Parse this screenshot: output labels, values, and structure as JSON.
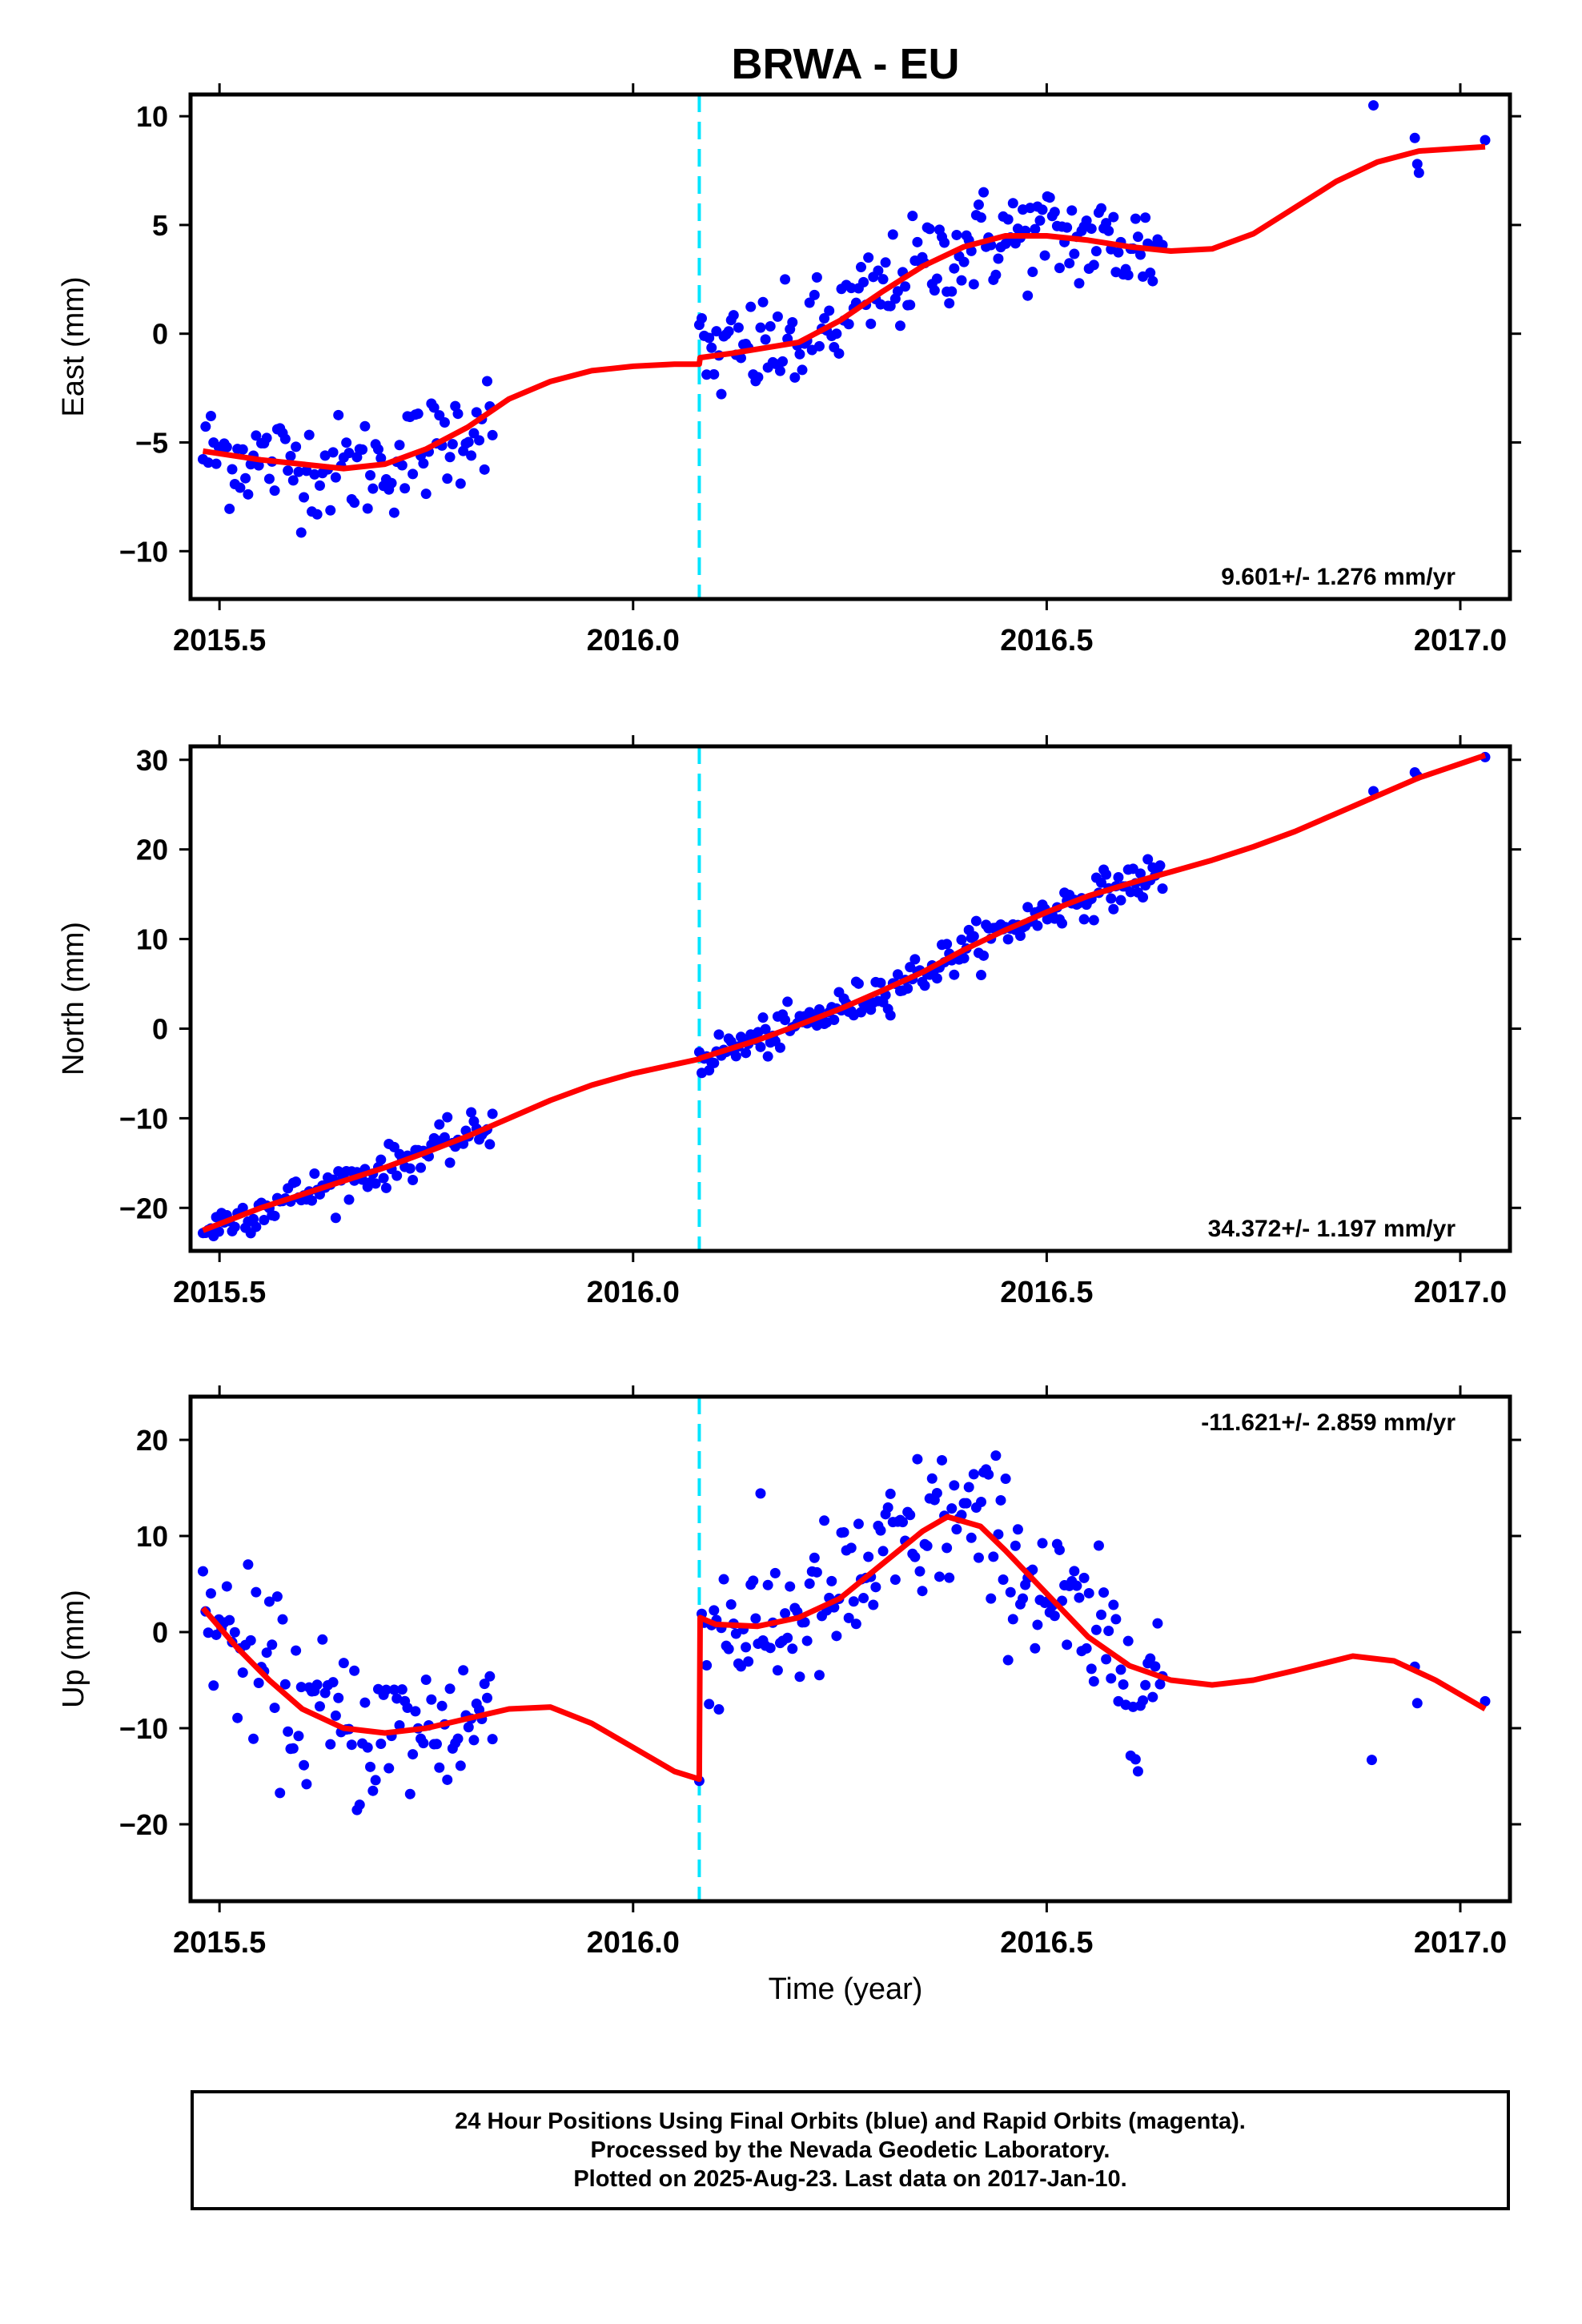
{
  "title": "BRWA - EU",
  "colors": {
    "fit": "#ff0000",
    "final_orbits": "#0000ff",
    "offset": "#00e5ff",
    "frame": "#000000"
  },
  "xaxis": {
    "label": "Time (year)",
    "range": [
      2015.465,
      2017.06
    ],
    "ticks": [
      2015.5,
      2016.0,
      2016.5,
      2017.0
    ],
    "tick_labels": [
      "2015.5",
      "2016.0",
      "2016.5",
      "2017.0"
    ]
  },
  "chart_data": [
    {
      "type": "scatter",
      "component": "east",
      "ylabel": "East (mm)",
      "ylim": [
        -12.2,
        11
      ],
      "yticks": [
        10,
        5,
        0,
        -5,
        -10
      ],
      "ytick_labels": [
        "10",
        "5",
        "0",
        "−5",
        "−10"
      ],
      "rate_label": "9.601+/- 1.276 mm/yr",
      "offset_epoch": 2016.08,
      "series": [
        {
          "name": "Final Orbits",
          "marker": "dot",
          "color": "#0000ff",
          "x": [],
          "y": []
        },
        {
          "name": "model fit",
          "marker": "line",
          "color": "#ff0000",
          "x": [
            2015.48,
            2015.55,
            2015.6,
            2015.65,
            2015.7,
            2015.75,
            2015.8,
            2015.85,
            2015.9,
            2015.95,
            2016.0,
            2016.05,
            2016.08,
            2016.081,
            2016.12,
            2016.2,
            2016.25,
            2016.3,
            2016.35,
            2016.4,
            2016.45,
            2016.5,
            2016.55,
            2016.6,
            2016.65,
            2016.7,
            2016.75,
            2016.8,
            2016.85,
            2016.9,
            2016.95,
            2017.03
          ],
          "y": [
            -5.4,
            -5.8,
            -6.0,
            -6.2,
            -6.0,
            -5.3,
            -4.3,
            -3.0,
            -2.2,
            -1.7,
            -1.5,
            -1.4,
            -1.4,
            -1.1,
            -0.9,
            -0.4,
            0.6,
            1.9,
            3.1,
            4.0,
            4.5,
            4.5,
            4.3,
            4.0,
            3.8,
            3.9,
            4.6,
            5.8,
            7.0,
            7.9,
            8.4,
            8.6
          ]
        }
      ],
      "scatter_model": {
        "segments": [
          {
            "x_start": 2015.48,
            "x_end": 2015.83,
            "count": 110
          },
          {
            "x_start": 2016.08,
            "x_end": 2016.64,
            "count": 190
          }
        ],
        "sparse": [
          [
            2016.895,
            10.5
          ],
          [
            2016.945,
            9.0
          ],
          [
            2016.948,
            7.8
          ],
          [
            2016.95,
            7.4
          ],
          [
            2017.03,
            8.9
          ]
        ],
        "scatter_sd": 1.2
      }
    },
    {
      "type": "scatter",
      "component": "north",
      "ylabel": "North (mm)",
      "ylim": [
        -24.8,
        31.5
      ],
      "yticks": [
        30,
        20,
        10,
        0,
        -10,
        -20
      ],
      "ytick_labels": [
        "30",
        "20",
        "10",
        "0",
        "−10",
        "−20"
      ],
      "rate_label": "34.372+/- 1.197 mm/yr",
      "offset_epoch": 2016.08,
      "series": [
        {
          "name": "Final Orbits",
          "marker": "dot",
          "color": "#0000ff",
          "x": [],
          "y": []
        },
        {
          "name": "model fit",
          "marker": "line",
          "color": "#ff0000",
          "x": [
            2015.48,
            2015.55,
            2015.6,
            2015.65,
            2015.7,
            2015.75,
            2015.8,
            2015.85,
            2015.9,
            2015.95,
            2016.0,
            2016.05,
            2016.08,
            2016.081,
            2016.15,
            2016.2,
            2016.25,
            2016.3,
            2016.35,
            2016.4,
            2016.45,
            2016.5,
            2016.55,
            2016.6,
            2016.65,
            2016.7,
            2016.75,
            2016.8,
            2016.85,
            2016.9,
            2016.95,
            2017.03
          ],
          "y": [
            -22.5,
            -20.0,
            -18.5,
            -17.0,
            -15.5,
            -13.8,
            -12.0,
            -10.0,
            -8.0,
            -6.3,
            -5.0,
            -4.0,
            -3.4,
            -3.3,
            -1.3,
            0.4,
            2.2,
            4.2,
            6.3,
            8.8,
            11.0,
            13.0,
            14.8,
            16.2,
            17.5,
            18.8,
            20.3,
            22.0,
            24.0,
            26.0,
            28.0,
            30.5
          ]
        }
      ],
      "scatter_model": {
        "segments": [
          {
            "x_start": 2015.48,
            "x_end": 2015.83,
            "count": 110
          },
          {
            "x_start": 2016.08,
            "x_end": 2016.64,
            "count": 190
          }
        ],
        "sparse": [
          [
            2016.895,
            26.5
          ],
          [
            2016.945,
            28.6
          ],
          [
            2016.948,
            28.2
          ],
          [
            2017.03,
            30.3
          ]
        ],
        "scatter_sd": 1.1
      }
    },
    {
      "type": "scatter",
      "component": "up",
      "ylabel": "Up (mm)",
      "ylim": [
        -28,
        24.5
      ],
      "yticks": [
        20,
        10,
        0,
        -10,
        -20
      ],
      "ytick_labels": [
        "20",
        "10",
        "0",
        "−10",
        "−20"
      ],
      "rate_label": "-11.621+/- 2.859 mm/yr",
      "offset_epoch": 2016.08,
      "series": [
        {
          "name": "Final Orbits",
          "marker": "dot",
          "color": "#0000ff",
          "x": [],
          "y": []
        },
        {
          "name": "model fit",
          "marker": "line",
          "color": "#ff0000",
          "x": [
            2015.48,
            2015.52,
            2015.56,
            2015.6,
            2015.65,
            2015.7,
            2015.75,
            2015.8,
            2015.85,
            2015.9,
            2015.95,
            2016.0,
            2016.05,
            2016.08,
            2016.081,
            2016.1,
            2016.15,
            2016.2,
            2016.25,
            2016.3,
            2016.35,
            2016.38,
            2016.42,
            2016.45,
            2016.5,
            2016.55,
            2016.6,
            2016.65,
            2016.7,
            2016.75,
            2016.8,
            2016.87,
            2016.92,
            2016.97,
            2017.03
          ],
          "y": [
            2.5,
            -1.5,
            -5.0,
            -8.0,
            -10.0,
            -10.5,
            -10.0,
            -9.0,
            -8.0,
            -7.8,
            -9.5,
            -12.0,
            -14.5,
            -15.3,
            1.5,
            0.8,
            0.6,
            1.5,
            3.5,
            7.0,
            10.5,
            12.0,
            11.0,
            8.5,
            4.0,
            -0.5,
            -3.5,
            -5.0,
            -5.5,
            -5.0,
            -4.0,
            -2.5,
            -3.0,
            -5.0,
            -8.0
          ]
        }
      ],
      "scatter_model": {
        "segments": [
          {
            "x_start": 2015.48,
            "x_end": 2015.83,
            "count": 110
          },
          {
            "x_start": 2016.08,
            "x_end": 2016.64,
            "count": 190
          }
        ],
        "sparse": [
          [
            2016.893,
            -13.3
          ],
          [
            2016.945,
            -3.6
          ],
          [
            2016.948,
            -7.4
          ],
          [
            2017.03,
            -7.2
          ]
        ],
        "scatter_sd": 4.2
      }
    }
  ],
  "footer": {
    "line1": "24 Hour Positions Using Final Orbits (blue) and Rapid Orbits (magenta).",
    "line2": "Processed by the Nevada Geodetic Laboratory.",
    "line3": "Plotted on 2025-Aug-23. Last data on 2017-Jan-10."
  }
}
